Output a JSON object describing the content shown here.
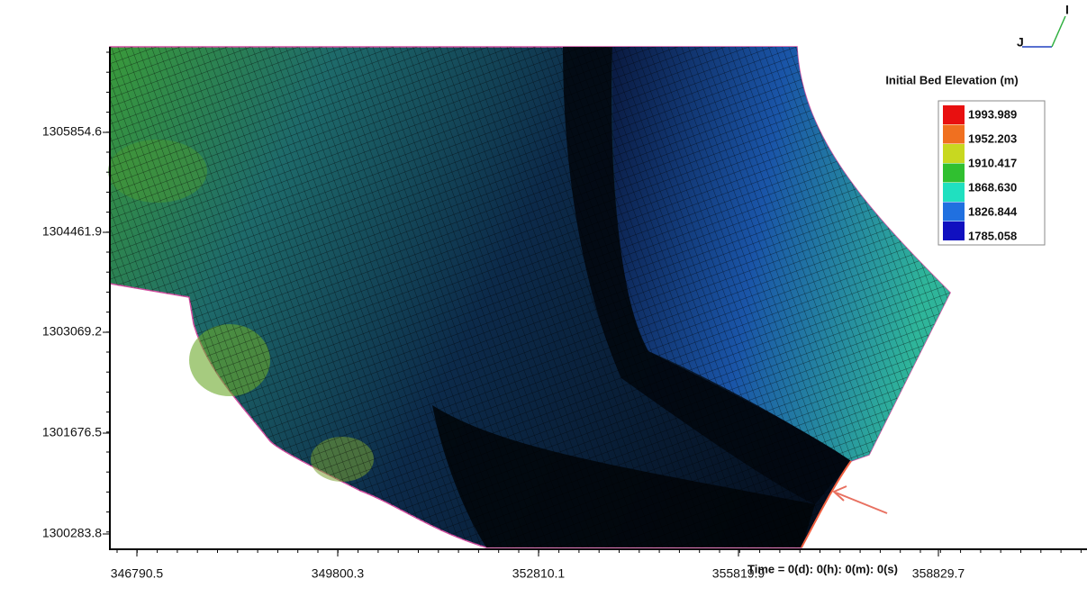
{
  "legend": {
    "title": "Initial Bed Elevation (m)",
    "labels": [
      "1993.989",
      "1952.203",
      "1910.417",
      "1868.630",
      "1826.844",
      "1785.058"
    ]
  },
  "y_axis": {
    "ticks": [
      "1305854.6",
      "1304461.9",
      "1303069.2",
      "1301676.5",
      "1300283.8"
    ]
  },
  "x_axis": {
    "ticks": [
      "346790.5",
      "349800.3",
      "352810.1",
      "355819.9",
      "358829.7"
    ]
  },
  "time_label": "Time = 0(d): 0(h): 0(m): 0(s)",
  "orientation": {
    "i": "I",
    "j": "J"
  }
}
